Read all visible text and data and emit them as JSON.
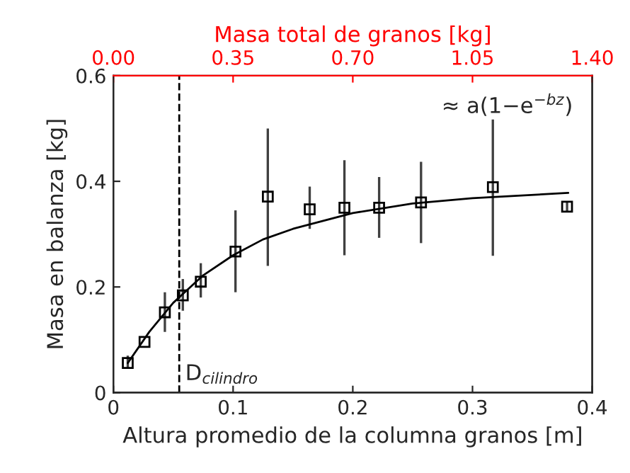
{
  "chart_data": {
    "type": "scatter",
    "xlabel": "Altura promedio de la columna granos [m]",
    "ylabel": "Masa en balanza [kg]",
    "x2label": "Masa total de granos [kg]",
    "xlim": [
      0,
      0.4
    ],
    "xticks": [
      0,
      0.1,
      0.2,
      0.3,
      0.4
    ],
    "ylim": [
      0,
      0.6
    ],
    "yticks": [
      0,
      0.2,
      0.4,
      0.6
    ],
    "x2lim": [
      0,
      1.4
    ],
    "x2ticks": [
      {
        "value": 0,
        "label": "0.00"
      },
      {
        "value": 0.35,
        "label": "0.35"
      },
      {
        "value": 0.7,
        "label": "0.70"
      },
      {
        "value": 1.05,
        "label": "1.05"
      },
      {
        "value": 1.4,
        "label": "1.40"
      }
    ],
    "grid": false,
    "marker": "square",
    "series": [
      {
        "color": "#000000",
        "x": [
          0.012,
          0.026,
          0.043,
          0.058,
          0.073,
          0.102,
          0.129,
          0.164,
          0.193,
          0.222,
          0.257,
          0.317,
          0.379
        ],
        "values": [
          0.056,
          0.096,
          0.152,
          0.184,
          0.21,
          0.267,
          0.371,
          0.347,
          0.35,
          0.35,
          0.36,
          0.389,
          0.352
        ],
        "errors": [
          [
            0.045,
            0.07
          ],
          null,
          [
            0.115,
            0.19
          ],
          [
            0.155,
            0.215
          ],
          [
            0.18,
            0.245
          ],
          [
            0.19,
            0.345
          ],
          [
            0.24,
            0.5
          ],
          [
            0.31,
            0.39
          ],
          [
            0.26,
            0.44
          ],
          [
            0.293,
            0.408
          ],
          [
            0.283,
            0.437
          ],
          [
            0.259,
            0.517
          ],
          [
            0.343,
            0.36
          ]
        ]
      },
      {
        "type": "line",
        "color": "#000000",
        "marker": "none",
        "line_style": "solid",
        "x": [
          0.012,
          0.03,
          0.05,
          0.075,
          0.1,
          0.125,
          0.15,
          0.2,
          0.25,
          0.3,
          0.38
        ],
        "values": [
          0.056,
          0.115,
          0.17,
          0.222,
          0.26,
          0.29,
          0.31,
          0.34,
          0.358,
          0.368,
          0.378
        ]
      }
    ],
    "ref_lines": [
      {
        "axis": "x",
        "value": 0.055,
        "label": "D$_{cilindro}$",
        "color": "#000000",
        "line_style": "dashed"
      }
    ],
    "annotations": [
      "≈ a(1−e$^{−bz}$)"
    ]
  }
}
